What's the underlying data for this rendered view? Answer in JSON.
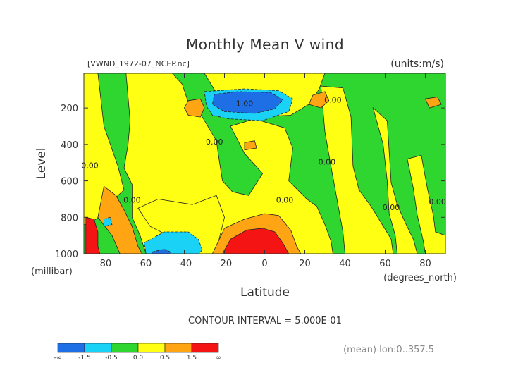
{
  "chart_data": {
    "type": "heatmap",
    "title": "Monthly Mean V wind",
    "source_label": "[VWND_1972-07_NCEP.nc]",
    "units_label": "(units:m/s)",
    "xlabel": "Latitude",
    "x_units": "(degrees_north)",
    "ylabel": "Level",
    "y_units": "(millibar)",
    "xlim": [
      -90,
      90
    ],
    "ylim": [
      1000,
      10
    ],
    "x_ticks": [
      -80,
      -60,
      -40,
      -20,
      0,
      20,
      40,
      60,
      80
    ],
    "y_ticks": [
      200,
      400,
      600,
      800,
      1000
    ],
    "contour_interval_text": "CONTOUR INTERVAL = 5.000E-01",
    "contour_labels": [
      {
        "text": "1.00",
        "lat": -10,
        "lev": 190
      },
      {
        "text": "0.00",
        "lat": 10,
        "lev": 720
      },
      {
        "text": "0.00",
        "lat": -87,
        "lev": 530
      },
      {
        "text": "0.00",
        "lat": -66,
        "lev": 720
      },
      {
        "text": "0.00",
        "lat": -25,
        "lev": 400
      },
      {
        "text": "0.00",
        "lat": 34,
        "lev": 170
      },
      {
        "text": "0.00",
        "lat": 31,
        "lev": 510
      },
      {
        "text": "0.00",
        "lat": 63,
        "lev": 760
      },
      {
        "text": "0.00",
        "lat": 86,
        "lev": 730
      }
    ],
    "colorbar": {
      "levels": [
        "-∞",
        "-1.5",
        "-0.5",
        "0.0",
        "0.5",
        "1.5",
        "∞"
      ],
      "colors": [
        "#1e6ee6",
        "#19d2f5",
        "#2fd62f",
        "#ffff14",
        "#ffa514",
        "#f51414"
      ]
    },
    "footer_label": "(mean) lon:0..357.5",
    "regions": [
      {
        "value": 0.0,
        "color": "#2fd62f",
        "poly": [
          [
            -90,
            10
          ],
          [
            90,
            10
          ],
          [
            90,
            1000
          ],
          [
            -90,
            1000
          ]
        ]
      },
      {
        "value": 0.25,
        "color": "#ffff14",
        "poly": [
          [
            -90,
            10
          ],
          [
            -83,
            10
          ],
          [
            -80,
            300
          ],
          [
            -73,
            520
          ],
          [
            -70,
            650
          ],
          [
            -77,
            720
          ],
          [
            -80,
            780
          ],
          [
            -88,
            840
          ],
          [
            -90,
            840
          ]
        ]
      },
      {
        "value": 0.25,
        "color": "#ffff14",
        "poly": [
          [
            -69,
            10
          ],
          [
            -46,
            10
          ],
          [
            -41,
            70
          ],
          [
            -38,
            170
          ],
          [
            -31,
            250
          ],
          [
            -24,
            380
          ],
          [
            -23,
            460
          ],
          [
            -21,
            600
          ],
          [
            -16,
            660
          ],
          [
            -8,
            680
          ],
          [
            -1,
            560
          ],
          [
            -10,
            450
          ],
          [
            -17,
            300
          ],
          [
            -5,
            260
          ],
          [
            10,
            310
          ],
          [
            14,
            420
          ],
          [
            12,
            600
          ],
          [
            21,
            700
          ],
          [
            26,
            740
          ],
          [
            30,
            840
          ],
          [
            33,
            930
          ],
          [
            34,
            1000
          ],
          [
            -59,
            1000
          ],
          [
            -62,
            900
          ],
          [
            -66,
            800
          ],
          [
            -66,
            620
          ],
          [
            -70,
            530
          ],
          [
            -68,
            400
          ],
          [
            -67,
            270
          ]
        ]
      },
      {
        "value": 0.25,
        "color": "#ffff14",
        "poly": [
          [
            -63,
            750
          ],
          [
            -53,
            700
          ],
          [
            -36,
            730
          ],
          [
            -24,
            680
          ],
          [
            -20,
            800
          ],
          [
            -24,
            980
          ],
          [
            -26,
            1000
          ],
          [
            -38,
            1000
          ],
          [
            -48,
            900
          ],
          [
            -57,
            850
          ]
        ]
      },
      {
        "value": 0.25,
        "color": "#ffff14",
        "poly": [
          [
            -30,
            10
          ],
          [
            30,
            10
          ],
          [
            27,
            100
          ],
          [
            22,
            180
          ],
          [
            13,
            240
          ],
          [
            -8,
            250
          ],
          [
            -20,
            190
          ]
        ]
      },
      {
        "value": 0.25,
        "color": "#ffff14",
        "poly": [
          [
            28,
            80
          ],
          [
            39,
            90
          ],
          [
            43,
            250
          ],
          [
            44,
            520
          ],
          [
            47,
            650
          ],
          [
            53,
            740
          ],
          [
            58,
            830
          ],
          [
            63,
            920
          ],
          [
            64,
            1000
          ],
          [
            40,
            1000
          ],
          [
            39,
            880
          ],
          [
            36,
            700
          ],
          [
            33,
            520
          ],
          [
            30,
            330
          ]
        ]
      },
      {
        "value": 0.25,
        "color": "#ffff14",
        "poly": [
          [
            54,
            200
          ],
          [
            61,
            270
          ],
          [
            62,
            440
          ],
          [
            63,
            610
          ],
          [
            66,
            730
          ],
          [
            70,
            830
          ],
          [
            74,
            920
          ],
          [
            76,
            1000
          ],
          [
            66,
            1000
          ],
          [
            65,
            900
          ],
          [
            62,
            780
          ],
          [
            61,
            600
          ],
          [
            59,
            400
          ]
        ]
      },
      {
        "value": 0.25,
        "color": "#ffff14",
        "poly": [
          [
            71,
            480
          ],
          [
            78,
            460
          ],
          [
            81,
            640
          ],
          [
            84,
            790
          ],
          [
            85,
            880
          ],
          [
            90,
            900
          ],
          [
            90,
            1000
          ],
          [
            80,
            1000
          ],
          [
            79,
            930
          ],
          [
            76,
            790
          ],
          [
            74,
            640
          ]
        ]
      },
      {
        "value": 0.75,
        "color": "#ffa514",
        "poly": [
          [
            -80,
            630
          ],
          [
            -74,
            680
          ],
          [
            -70,
            760
          ],
          [
            -66,
            850
          ],
          [
            -63,
            960
          ],
          [
            -61,
            1000
          ],
          [
            -72,
            1000
          ],
          [
            -76,
            900
          ],
          [
            -83,
            800
          ]
        ]
      },
      {
        "value": 0.75,
        "color": "#ffa514",
        "poly": [
          [
            -20,
            860
          ],
          [
            -10,
            810
          ],
          [
            0,
            780
          ],
          [
            7,
            790
          ],
          [
            13,
            870
          ],
          [
            16,
            960
          ],
          [
            18,
            1000
          ],
          [
            -26,
            1000
          ],
          [
            -23,
            930
          ]
        ]
      },
      {
        "value": 0.75,
        "color": "#ffa514",
        "poly": [
          [
            -38,
            160
          ],
          [
            -32,
            150
          ],
          [
            -30,
            200
          ],
          [
            -32,
            250
          ],
          [
            -38,
            240
          ],
          [
            -40,
            200
          ]
        ]
      },
      {
        "value": 0.75,
        "color": "#ffa514",
        "poly": [
          [
            24,
            130
          ],
          [
            30,
            110
          ],
          [
            32,
            160
          ],
          [
            28,
            200
          ],
          [
            22,
            180
          ]
        ]
      },
      {
        "value": 0.75,
        "color": "#ffa514",
        "poly": [
          [
            -10,
            390
          ],
          [
            -5,
            380
          ],
          [
            -4,
            420
          ],
          [
            -10,
            430
          ]
        ]
      },
      {
        "value": 0.75,
        "color": "#ffa514",
        "poly": [
          [
            80,
            150
          ],
          [
            86,
            140
          ],
          [
            88,
            180
          ],
          [
            82,
            200
          ]
        ]
      },
      {
        "value": 1.5,
        "color": "#f51414",
        "poly": [
          [
            -17,
            920
          ],
          [
            -9,
            870
          ],
          [
            -1,
            860
          ],
          [
            5,
            880
          ],
          [
            9,
            940
          ],
          [
            12,
            1000
          ],
          [
            -21,
            1000
          ]
        ]
      },
      {
        "value": 1.5,
        "color": "#f51414",
        "poly": [
          [
            -89,
            800
          ],
          [
            -85,
            810
          ],
          [
            -83,
            880
          ],
          [
            -83,
            960
          ],
          [
            -82,
            1000
          ],
          [
            -89,
            1000
          ]
        ]
      },
      {
        "value": -0.25,
        "color": "#19d2f5",
        "poly": [
          [
            -30,
            110
          ],
          [
            -10,
            95
          ],
          [
            7,
            105
          ],
          [
            14,
            150
          ],
          [
            12,
            220
          ],
          [
            -1,
            270
          ],
          [
            -18,
            260
          ],
          [
            -26,
            240
          ],
          [
            -29,
            190
          ]
        ]
      },
      {
        "value": -0.25,
        "color": "#19d2f5",
        "poly": [
          [
            -60,
            940
          ],
          [
            -50,
            880
          ],
          [
            -38,
            880
          ],
          [
            -33,
            920
          ],
          [
            -31,
            980
          ],
          [
            -33,
            1000
          ],
          [
            -59,
            1000
          ]
        ]
      },
      {
        "value": -0.25,
        "color": "#19d2f5",
        "poly": [
          [
            -80,
            810
          ],
          [
            -77,
            800
          ],
          [
            -76,
            840
          ],
          [
            -80,
            850
          ]
        ]
      },
      {
        "value": -1.25,
        "color": "#1e6ee6",
        "poly": [
          [
            -25,
            125
          ],
          [
            -13,
            110
          ],
          [
            3,
            115
          ],
          [
            9,
            155
          ],
          [
            5,
            205
          ],
          [
            -5,
            230
          ],
          [
            -20,
            220
          ],
          [
            -26,
            180
          ]
        ]
      },
      {
        "value": -1.25,
        "color": "#1e6ee6",
        "poly": [
          [
            -56,
            990
          ],
          [
            -50,
            975
          ],
          [
            -47,
            990
          ],
          [
            -47,
            1000
          ],
          [
            -56,
            1000
          ]
        ]
      }
    ]
  }
}
